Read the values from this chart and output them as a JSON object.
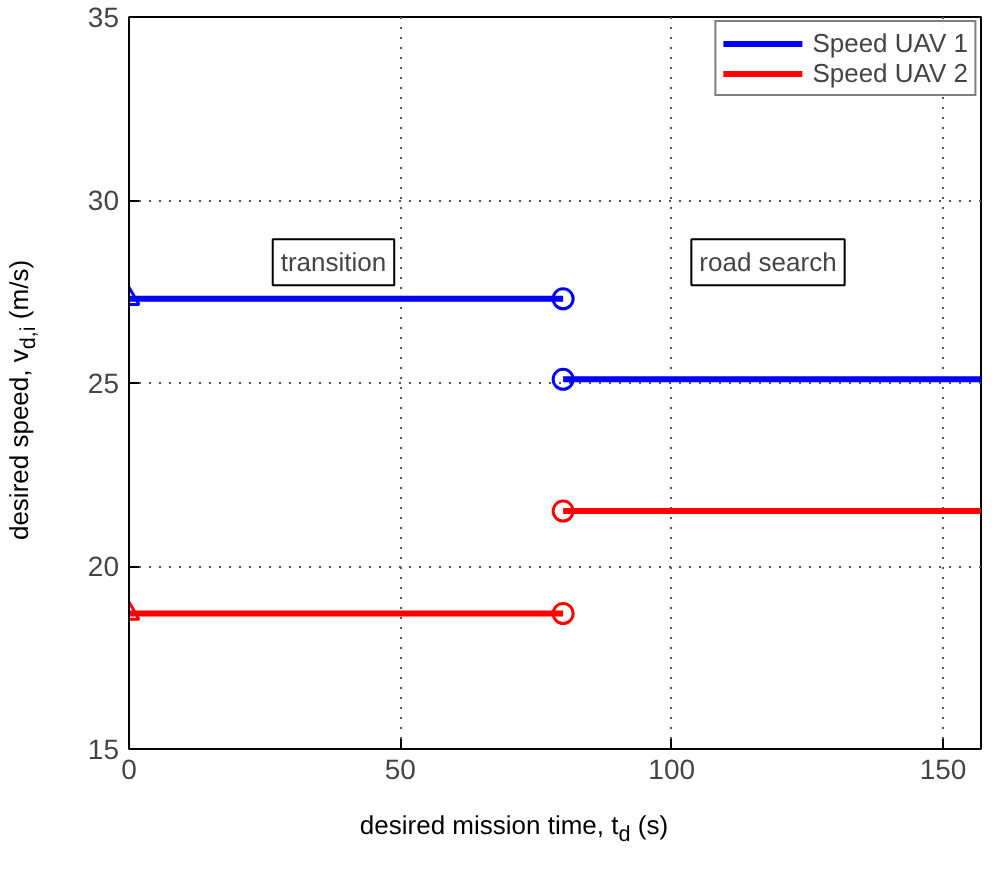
{
  "chart_data": {
    "type": "line",
    "xlabel": "desired mission time, t$_{d}$ (s)",
    "ylabel": "desired speed, v$_{d,i}$ (m/s)",
    "xlim": [
      0,
      157
    ],
    "xticks": [
      0,
      50,
      100,
      150
    ],
    "ylim": [
      15,
      35
    ],
    "yticks": [
      15,
      20,
      25,
      30,
      35
    ],
    "grid": true,
    "legend": "top right",
    "marker": "none",
    "line_style": "solid",
    "series": [
      {
        "name": "Speed UAV 1",
        "color": "#0000ff",
        "x": [
          0,
          80
        ],
        "values": [
          27.3,
          27.3
        ]
      },
      {
        "color": "#0000ff",
        "x": [
          80,
          157
        ],
        "values": [
          25.1,
          25.1
        ]
      },
      {
        "name": "Speed UAV 2",
        "color": "#ff0000",
        "x": [
          0,
          80
        ],
        "values": [
          18.7,
          18.7
        ]
      },
      {
        "color": "#ff0000",
        "x": [
          80,
          157
        ],
        "values": [
          21.5,
          21.5
        ]
      },
      {
        "type": "scatter",
        "marker": "triangle",
        "color": "#0000ff",
        "x": [
          0
        ],
        "values": [
          27.3
        ]
      },
      {
        "type": "scatter",
        "marker": "circle",
        "color": "#0000ff",
        "x": [
          80,
          80
        ],
        "values": [
          27.3,
          25.1
        ]
      },
      {
        "type": "scatter",
        "marker": "triangle",
        "color": "#ff0000",
        "x": [
          0
        ],
        "values": [
          18.7
        ]
      },
      {
        "type": "scatter",
        "marker": "circle",
        "color": "#ff0000",
        "x": [
          80,
          80
        ],
        "values": [
          18.7,
          21.5
        ]
      }
    ],
    "annotations": [
      "transition",
      "road search"
    ]
  }
}
